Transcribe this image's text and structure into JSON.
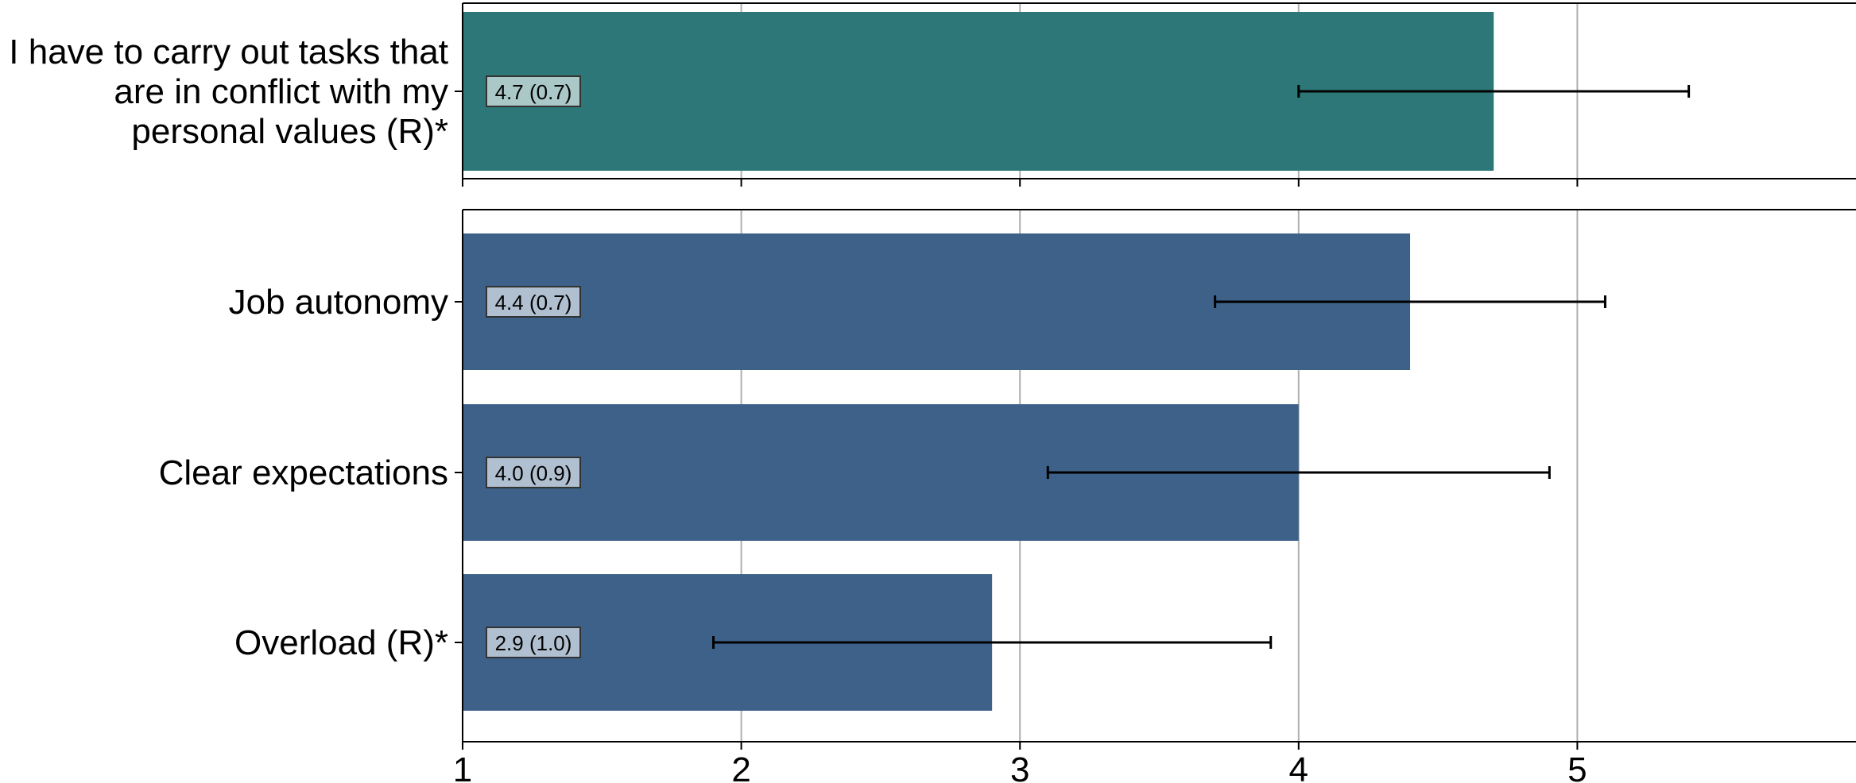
{
  "chart_data": {
    "type": "bar",
    "orientation": "horizontal",
    "xlim": [
      1,
      6
    ],
    "x_ticks": [
      1,
      2,
      3,
      4,
      5
    ],
    "grid": true,
    "error_bars": true,
    "panels": [
      {
        "color": "#2e7778",
        "bars": [
          {
            "label_lines": [
              "I have to carry out tasks that",
              "are in conflict with my",
              "personal values (R)*"
            ],
            "value": 4.7,
            "sd": 0.7,
            "value_label": "4.7 (0.7)"
          }
        ]
      },
      {
        "color": "#3e6189",
        "bars": [
          {
            "label_lines": [
              "Job autonomy"
            ],
            "value": 4.4,
            "sd": 0.7,
            "value_label": "4.4 (0.7)"
          },
          {
            "label_lines": [
              "Clear expectations"
            ],
            "value": 4.0,
            "sd": 0.9,
            "value_label": "4.0 (0.9)"
          },
          {
            "label_lines": [
              "Overload (R)*"
            ],
            "value": 2.9,
            "sd": 1.0,
            "value_label": "2.9 (1.0)"
          }
        ]
      }
    ]
  }
}
